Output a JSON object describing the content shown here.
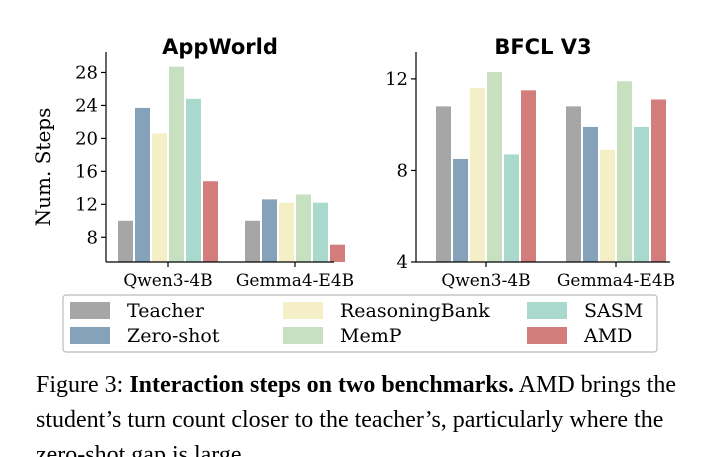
{
  "chart_data": [
    {
      "type": "bar",
      "title": "AppWorld",
      "ylabel": "Num. Steps",
      "categories": [
        "Qwen3-4B",
        "Gemma4-E4B"
      ],
      "ylim": [
        5,
        30
      ],
      "yticks": [
        8,
        12,
        16,
        20,
        24,
        28
      ],
      "series": [
        {
          "name": "Teacher",
          "values": [
            10.0,
            10.0
          ]
        },
        {
          "name": "Zero-shot",
          "values": [
            23.7,
            12.6
          ]
        },
        {
          "name": "ReasoningBank",
          "values": [
            20.6,
            12.2
          ]
        },
        {
          "name": "MemP",
          "values": [
            28.7,
            13.2
          ]
        },
        {
          "name": "SASM",
          "values": [
            24.8,
            12.2
          ]
        },
        {
          "name": "AMD",
          "values": [
            14.8,
            7.1
          ]
        }
      ]
    },
    {
      "type": "bar",
      "title": "BFCL V3",
      "ylabel": "",
      "categories": [
        "Qwen3-4B",
        "Gemma4-E4B"
      ],
      "ylim": [
        4,
        13
      ],
      "yticks": [
        4,
        8,
        12
      ],
      "series": [
        {
          "name": "Teacher",
          "values": [
            10.8,
            10.8
          ]
        },
        {
          "name": "Zero-shot",
          "values": [
            8.5,
            9.9
          ]
        },
        {
          "name": "ReasoningBank",
          "values": [
            11.6,
            8.9
          ]
        },
        {
          "name": "MemP",
          "values": [
            12.3,
            11.9
          ]
        },
        {
          "name": "SASM",
          "values": [
            8.7,
            9.9
          ]
        },
        {
          "name": "AMD",
          "values": [
            11.5,
            11.1
          ]
        }
      ]
    }
  ],
  "legend": [
    "Teacher",
    "ReasoningBank",
    "SASM",
    "Zero-shot",
    "MemP",
    "AMD"
  ],
  "colors": {
    "Teacher": "#a6a6a6",
    "Zero-shot": "#86a2ba",
    "ReasoningBank": "#f4efc6",
    "MemP": "#c7e1c0",
    "SASM": "#a9d8cc",
    "AMD": "#d47d7d"
  },
  "caption": {
    "prefix": "Figure 3: ",
    "bold": "Interaction steps on two benchmarks.",
    "rest": " AMD brings the student’s turn count closer to the teacher’s, particularly where the zero-shot gap is large."
  }
}
